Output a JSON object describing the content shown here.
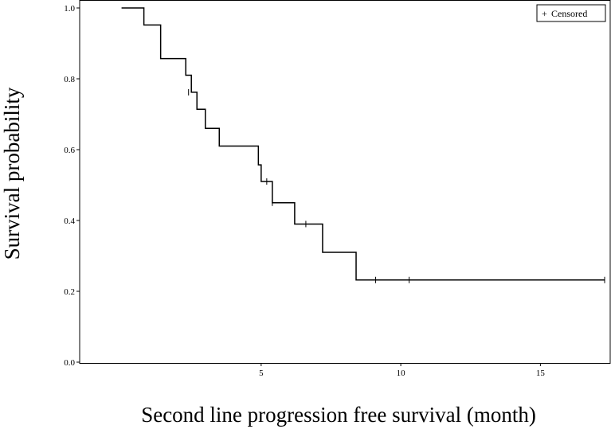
{
  "chart_data": {
    "type": "line",
    "subtype": "kaplan-meier-step",
    "title": "",
    "xlabel": "Second line progression free survival (month)",
    "ylabel": "Survival probability",
    "xlim": [
      -1.5,
      17.5
    ],
    "ylim": [
      0,
      1.0
    ],
    "x_ticks": [
      5,
      10,
      15
    ],
    "x_tick_labels": [
      "5",
      "10",
      "15"
    ],
    "y_ticks": [
      0.0,
      0.2,
      0.4,
      0.6,
      0.8,
      1.0
    ],
    "y_tick_labels": [
      "0.0",
      "0.2",
      "0.4",
      "0.6",
      "0.8",
      "1.0"
    ],
    "grid": false,
    "legend": {
      "placement": "top-right",
      "entries": [
        {
          "marker": "+",
          "label": "Censored"
        }
      ]
    },
    "series": [
      {
        "steps": [
          {
            "x": 0.0,
            "y": 1.0
          },
          {
            "x": 0.8,
            "y": 0.952
          },
          {
            "x": 1.4,
            "y": 0.857
          },
          {
            "x": 2.3,
            "y": 0.81
          },
          {
            "x": 2.5,
            "y": 0.762
          },
          {
            "x": 2.7,
            "y": 0.714
          },
          {
            "x": 3.0,
            "y": 0.66
          },
          {
            "x": 3.5,
            "y": 0.61
          },
          {
            "x": 4.9,
            "y": 0.557
          },
          {
            "x": 5.0,
            "y": 0.51
          },
          {
            "x": 5.4,
            "y": 0.45
          },
          {
            "x": 6.2,
            "y": 0.39
          },
          {
            "x": 7.2,
            "y": 0.31
          },
          {
            "x": 8.4,
            "y": 0.232
          }
        ],
        "x_end": 17.3,
        "censored": [
          {
            "x": 2.4,
            "y": 0.762
          },
          {
            "x": 5.2,
            "y": 0.51
          },
          {
            "x": 5.4,
            "y": 0.45
          },
          {
            "x": 6.6,
            "y": 0.39
          },
          {
            "x": 9.1,
            "y": 0.232
          },
          {
            "x": 10.3,
            "y": 0.232
          },
          {
            "x": 17.3,
            "y": 0.232
          }
        ]
      }
    ]
  }
}
